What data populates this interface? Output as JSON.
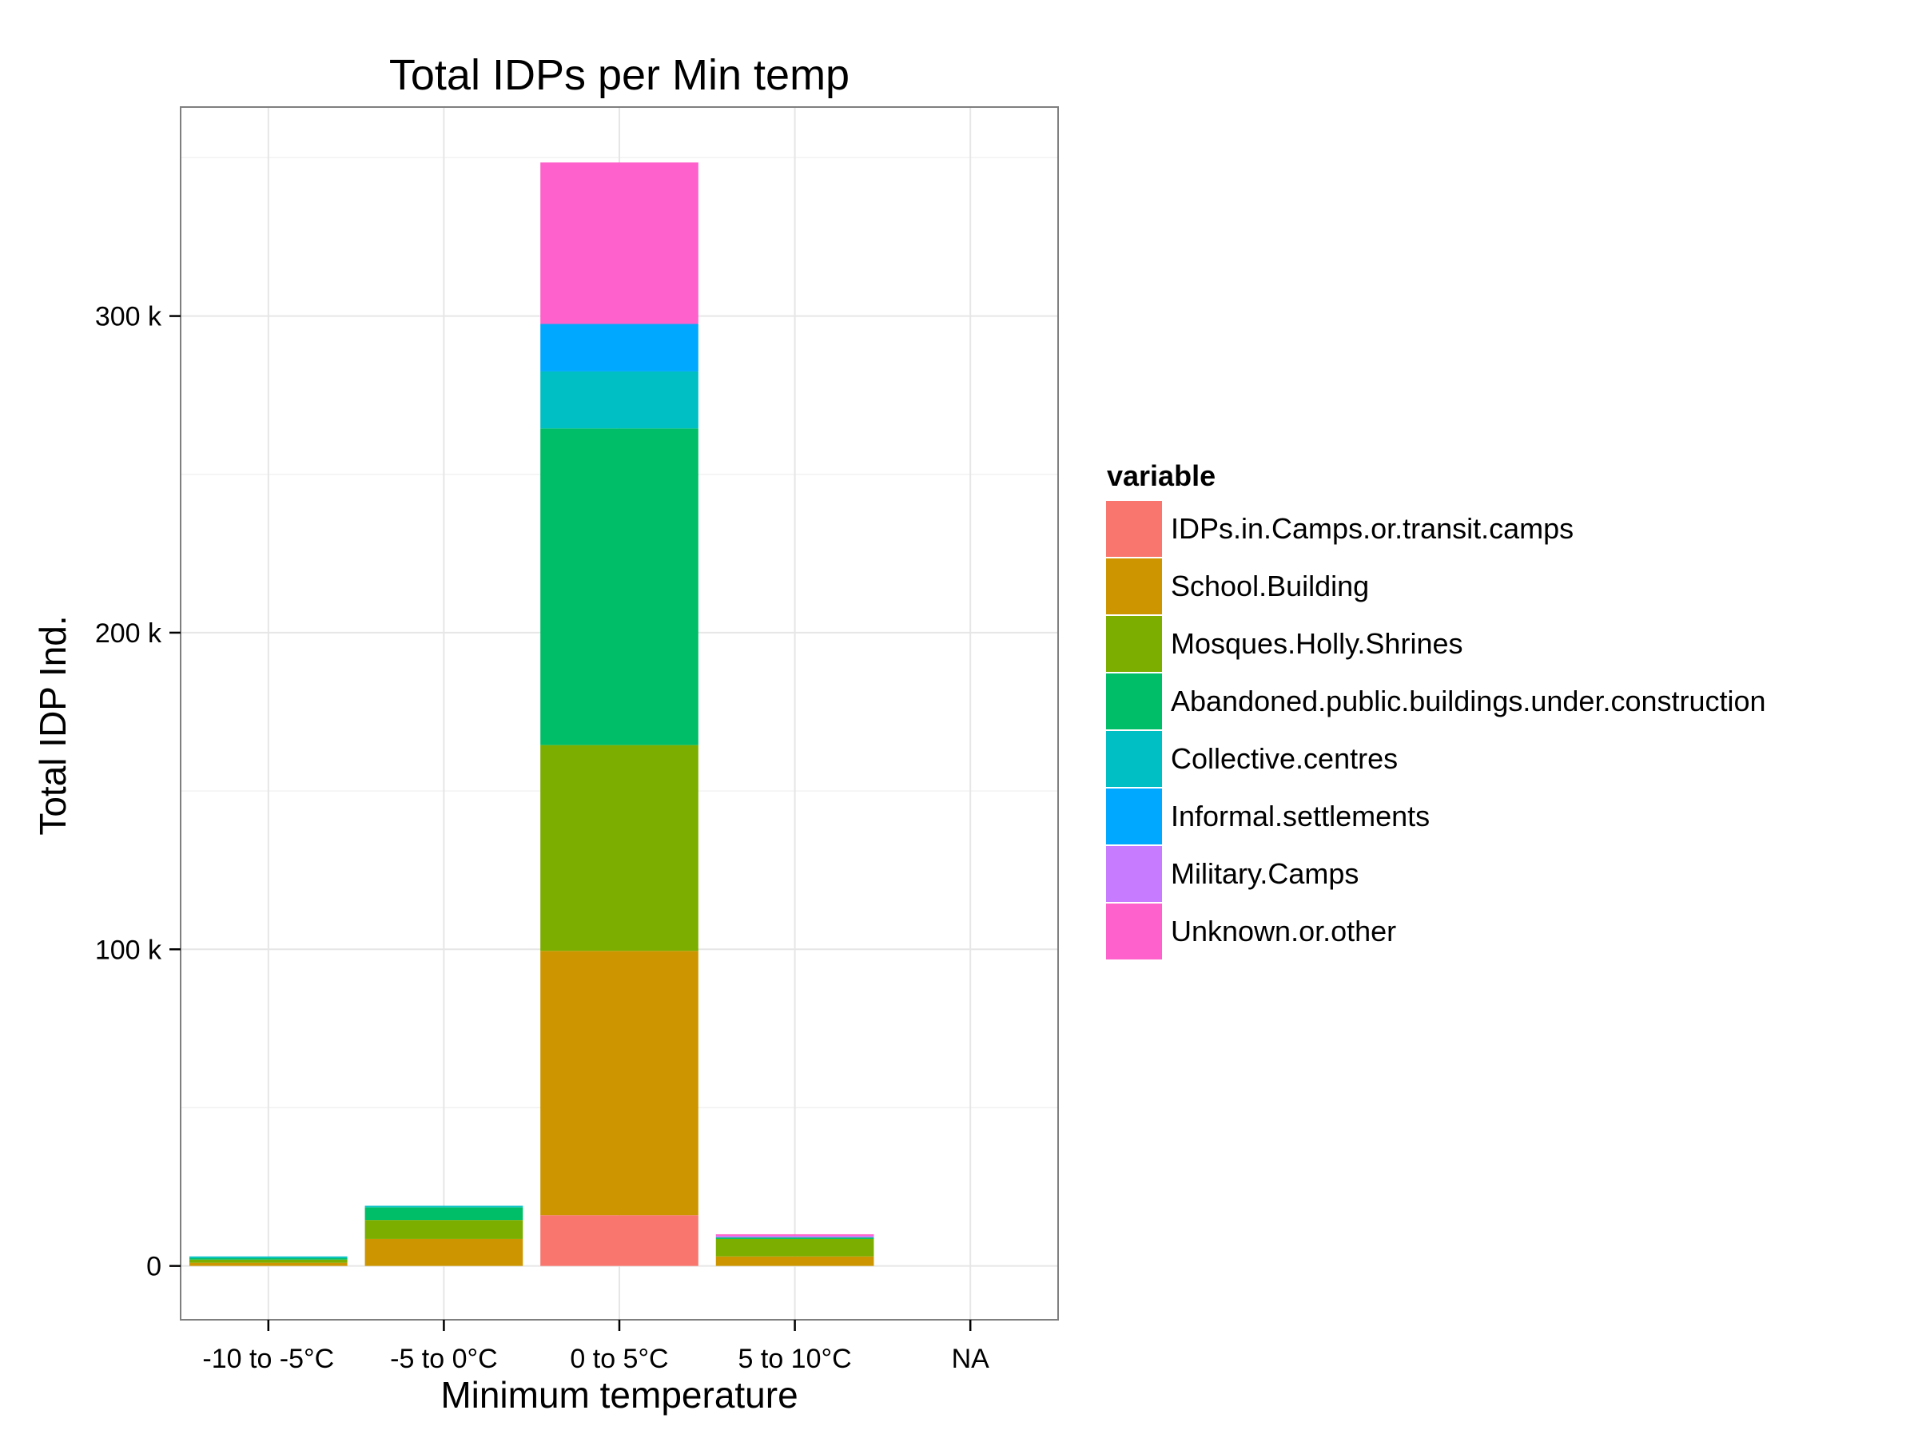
{
  "chart_data": {
    "type": "bar",
    "stacked": true,
    "title": "Total IDPs per Min temp",
    "xlabel": "Minimum temperature",
    "ylabel": "Total IDP Ind.",
    "categories": [
      "-10 to -5°C",
      "-5 to 0°C",
      "0 to 5°C",
      "5 to 10°C",
      "NA"
    ],
    "yticks": [
      0,
      100000,
      200000,
      300000
    ],
    "ytick_labels": [
      "0",
      "100 k",
      "200 k",
      "300 k"
    ],
    "ylim": [
      -17000,
      366000
    ],
    "grid": true,
    "legend": {
      "title": "variable",
      "position": "right"
    },
    "series": [
      {
        "name": "IDPs.in.Camps.or.transit.camps",
        "color": "#F8766D",
        "values": [
          0,
          0,
          16000,
          0,
          0
        ]
      },
      {
        "name": "School.Building",
        "color": "#CD9600",
        "values": [
          1000,
          8500,
          83500,
          3000,
          0
        ]
      },
      {
        "name": "Mosques.Holly.Shrines",
        "color": "#7CAE00",
        "values": [
          1000,
          6000,
          65000,
          5500,
          0
        ]
      },
      {
        "name": "Abandoned.public.buildings.under.construction",
        "color": "#00BE67",
        "values": [
          500,
          4000,
          100000,
          500,
          0
        ]
      },
      {
        "name": "Collective.centres",
        "color": "#00BFC4",
        "values": [
          500,
          500,
          18000,
          0,
          0
        ]
      },
      {
        "name": "Informal.settlements",
        "color": "#00A9FF",
        "values": [
          0,
          0,
          15000,
          0,
          0
        ]
      },
      {
        "name": "Military.Camps",
        "color": "#C77CFF",
        "values": [
          0,
          0,
          0,
          500,
          0
        ]
      },
      {
        "name": "Unknown.or.other",
        "color": "#FF61CC",
        "values": [
          0,
          0,
          51000,
          500,
          0
        ]
      }
    ]
  }
}
